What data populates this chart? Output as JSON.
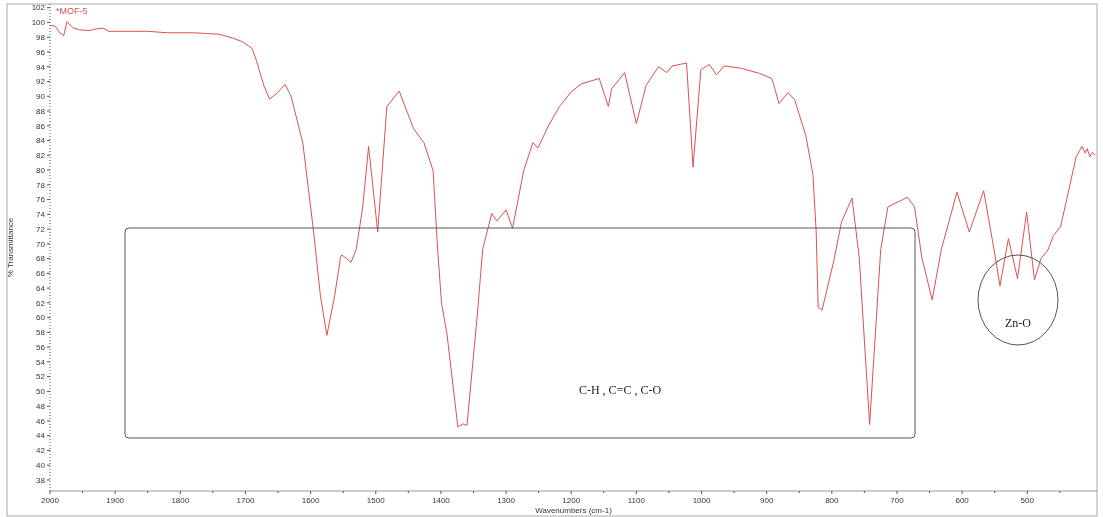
{
  "chart_data": {
    "type": "line",
    "xlabel": "Wavenumbers (cm-1)",
    "ylabel": "% Transmittance",
    "xlim": [
      2000,
      393
    ],
    "ylim": [
      36.5,
      102.5
    ],
    "xticks": [
      2000,
      {
        "value": 1950,
        "label": null
      },
      1900,
      {
        "value": 1850,
        "label": null
      },
      1800,
      {
        "value": 1750,
        "label": null
      },
      1700,
      {
        "value": 1650,
        "label": null
      },
      1600,
      {
        "value": 1550,
        "label": null
      },
      1500,
      {
        "value": 1450,
        "label": null
      },
      1400,
      {
        "value": 1350,
        "label": null
      },
      1300,
      {
        "value": 1250,
        "label": null
      },
      1200,
      {
        "value": 1150,
        "label": null
      },
      1100,
      {
        "value": 1050,
        "label": null
      },
      1000,
      {
        "value": 950,
        "label": null
      },
      900,
      {
        "value": 850,
        "label": null
      },
      800,
      {
        "value": 750,
        "label": null
      },
      700,
      {
        "value": 650,
        "label": null
      },
      600,
      {
        "value": 550,
        "label": null
      },
      500,
      {
        "value": 450,
        "label": null
      }
    ],
    "yticks": [
      38,
      40,
      42,
      44,
      46,
      48,
      50,
      52,
      54,
      56,
      58,
      60,
      62,
      64,
      66,
      68,
      70,
      72,
      74,
      76,
      78,
      80,
      82,
      84,
      86,
      88,
      90,
      92,
      94,
      96,
      98,
      100,
      102
    ],
    "grid": false,
    "marker": "none",
    "line_style": "solid",
    "series": [
      {
        "name": "*MOF-5",
        "color": "#d9534f",
        "x": [
          2000,
          1992,
          1985,
          1979,
          1974,
          1965,
          1955,
          1940,
          1925,
          1918,
          1910,
          1880,
          1850,
          1820,
          1800,
          1780,
          1760,
          1740,
          1720,
          1705,
          1690,
          1683,
          1672,
          1663,
          1652,
          1639,
          1630,
          1612,
          1596,
          1585,
          1575,
          1563,
          1554,
          1552,
          1545,
          1538,
          1530,
          1520,
          1511,
          1497,
          1483,
          1464,
          1442,
          1426,
          1412,
          1405,
          1399,
          1391,
          1374,
          1366,
          1360,
          1344,
          1336,
          1322,
          1314,
          1300,
          1290,
          1273,
          1259,
          1251,
          1235,
          1218,
          1200,
          1184,
          1157,
          1143,
          1138,
          1118,
          1100,
          1085,
          1066,
          1053,
          1045,
          1023,
          1013,
          1001,
          988,
          977,
          965,
          940,
          911,
          892,
          881,
          867,
          857,
          840,
          829,
          824,
          821,
          815,
          797,
          785,
          769,
          758,
          742,
          725,
          714,
          684,
          673,
          662,
          646,
          632,
          608,
          589,
          567,
          550,
          542,
          529,
          515,
          501,
          489,
          479,
          468,
          460,
          449,
          437,
          425,
          416,
          411,
          408,
          404,
          400,
          396
        ],
        "values": [
          99.6,
          99.5,
          98.6,
          98.2,
          100.1,
          99.3,
          99.0,
          98.9,
          99.2,
          99.2,
          98.8,
          98.8,
          98.8,
          98.6,
          98.6,
          98.6,
          98.5,
          98.4,
          97.9,
          97.4,
          96.5,
          94.8,
          91.5,
          89.6,
          90.4,
          91.6,
          90.0,
          83.7,
          72.1,
          63.0,
          57.6,
          63.0,
          68.2,
          68.5,
          68.0,
          67.5,
          69.2,
          75.0,
          83.2,
          71.6,
          88.6,
          90.7,
          85.6,
          83.7,
          79.9,
          69.2,
          61.9,
          58.0,
          45.2,
          45.6,
          45.4,
          60.5,
          69.2,
          74.1,
          73.1,
          74.6,
          72.1,
          79.9,
          83.7,
          83.0,
          86.0,
          88.6,
          90.6,
          91.7,
          92.4,
          88.6,
          91.0,
          93.2,
          86.3,
          91.5,
          94.0,
          93.2,
          94.1,
          94.5,
          80.4,
          93.6,
          94.3,
          92.9,
          94.1,
          93.8,
          93.1,
          92.4,
          89.0,
          90.5,
          89.5,
          84.7,
          79.4,
          71.6,
          61.4,
          61.0,
          67.7,
          73.0,
          76.2,
          68.2,
          45.5,
          69.2,
          75.0,
          76.3,
          75.0,
          68.2,
          62.4,
          69.2,
          77.0,
          71.6,
          77.2,
          68.7,
          64.3,
          70.7,
          65.3,
          74.3,
          65.1,
          68.0,
          69.2,
          71.1,
          72.3,
          77.0,
          81.8,
          83.2,
          82.3,
          82.9,
          81.8,
          82.4,
          82.0
        ]
      }
    ],
    "annotations": [
      "C-H , C=C , C-O",
      "Zn-O"
    ]
  }
}
